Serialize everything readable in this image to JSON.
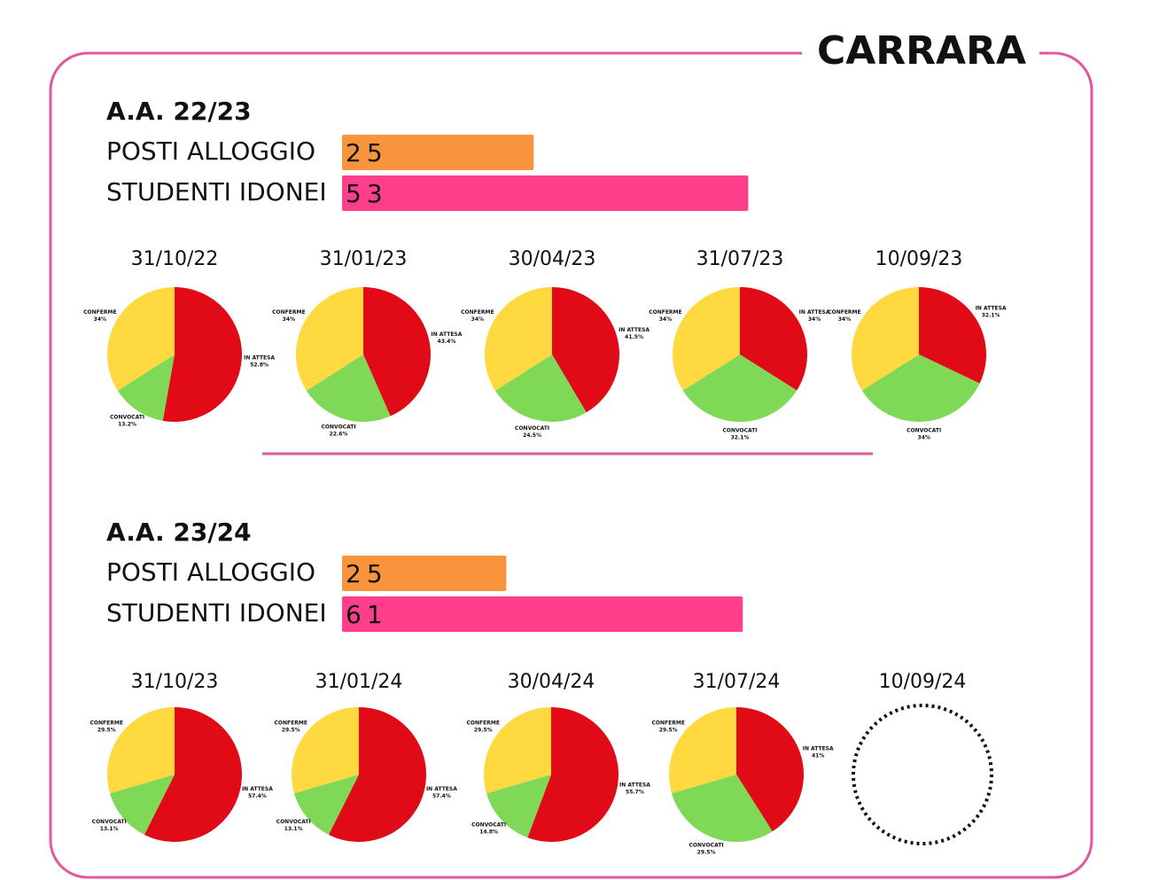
{
  "title": "CARRARA",
  "chart_data": [
    {
      "type": "bar",
      "orientation": "horizontal",
      "title": "A.A. 22/23",
      "categories": [
        "POSTI ALLOGGIO",
        "STUDENTI IDONEI"
      ],
      "values": [
        25,
        53
      ],
      "colors": [
        "#f7943c",
        "#ff3f8c"
      ],
      "xlim": [
        0,
        60
      ]
    },
    {
      "type": "pie",
      "title": "31/10/22",
      "categories": [
        "IN ATTESA",
        "CONVOCATI",
        "CONFERME"
      ],
      "values": [
        52.8,
        13.2,
        34
      ],
      "value_labels": [
        "52.8%",
        "13.2%",
        "34%"
      ],
      "colors": [
        "#e10a17",
        "#7fd957",
        "#ffd93f"
      ]
    },
    {
      "type": "pie",
      "title": "31/01/23",
      "categories": [
        "IN ATTESA",
        "CONVOCATI",
        "CONFERME"
      ],
      "values": [
        43.4,
        22.6,
        34
      ],
      "value_labels": [
        "43.4%",
        "22.6%",
        "34%"
      ],
      "colors": [
        "#e10a17",
        "#7fd957",
        "#ffd93f"
      ]
    },
    {
      "type": "pie",
      "title": "30/04/23",
      "categories": [
        "IN ATTESA",
        "CONVOCATI",
        "CONFERME"
      ],
      "values": [
        41.5,
        24.5,
        34
      ],
      "value_labels": [
        "41.5%",
        "24.5%",
        "34%"
      ],
      "colors": [
        "#e10a17",
        "#7fd957",
        "#ffd93f"
      ]
    },
    {
      "type": "pie",
      "title": "31/07/23",
      "categories": [
        "IN ATTESA",
        "CONVOCATI",
        "CONFERME"
      ],
      "values": [
        34,
        32.1,
        34
      ],
      "value_labels": [
        "34%",
        "32.1%",
        "34%"
      ],
      "colors": [
        "#e10a17",
        "#7fd957",
        "#ffd93f"
      ]
    },
    {
      "type": "pie",
      "title": "10/09/23",
      "categories": [
        "IN ATTESA",
        "CONVOCATI",
        "CONFERME"
      ],
      "values": [
        32.1,
        34,
        34
      ],
      "value_labels": [
        "32.1%",
        "34%",
        "34%"
      ],
      "colors": [
        "#e10a17",
        "#7fd957",
        "#ffd93f"
      ]
    },
    {
      "type": "bar",
      "orientation": "horizontal",
      "title": "A.A. 23/24",
      "categories": [
        "POSTI ALLOGGIO",
        "STUDENTI IDONEI"
      ],
      "values": [
        25,
        61
      ],
      "colors": [
        "#f7943c",
        "#ff3f8c"
      ],
      "xlim": [
        0,
        70
      ]
    },
    {
      "type": "pie",
      "title": "31/10/23",
      "categories": [
        "IN ATTESA",
        "CONVOCATI",
        "CONFERME"
      ],
      "values": [
        57.4,
        13.1,
        29.5
      ],
      "value_labels": [
        "57.4%",
        "13.1%",
        "29.5%"
      ],
      "colors": [
        "#e10a17",
        "#7fd957",
        "#ffd93f"
      ]
    },
    {
      "type": "pie",
      "title": "31/01/24",
      "categories": [
        "IN ATTESA",
        "CONVOCATI",
        "CONFERME"
      ],
      "values": [
        57.4,
        13.1,
        29.5
      ],
      "value_labels": [
        "57.4%",
        "13.1%",
        "29.5%"
      ],
      "colors": [
        "#e10a17",
        "#7fd957",
        "#ffd93f"
      ]
    },
    {
      "type": "pie",
      "title": "30/04/24",
      "categories": [
        "IN ATTESA",
        "CONVOCATI",
        "CONFERME"
      ],
      "values": [
        55.7,
        14.8,
        29.5
      ],
      "value_labels": [
        "55.7%",
        "14.8%",
        "29.5%"
      ],
      "colors": [
        "#e10a17",
        "#7fd957",
        "#ffd93f"
      ]
    },
    {
      "type": "pie",
      "title": "31/07/24",
      "categories": [
        "IN ATTESA",
        "CONVOCATI",
        "CONFERME"
      ],
      "values": [
        41,
        29.5,
        29.5
      ],
      "value_labels": [
        "41%",
        "29.5%",
        "29.5%"
      ],
      "colors": [
        "#e10a17",
        "#7fd957",
        "#ffd93f"
      ]
    },
    {
      "type": "pie",
      "title": "10/09/24"
    }
  ]
}
